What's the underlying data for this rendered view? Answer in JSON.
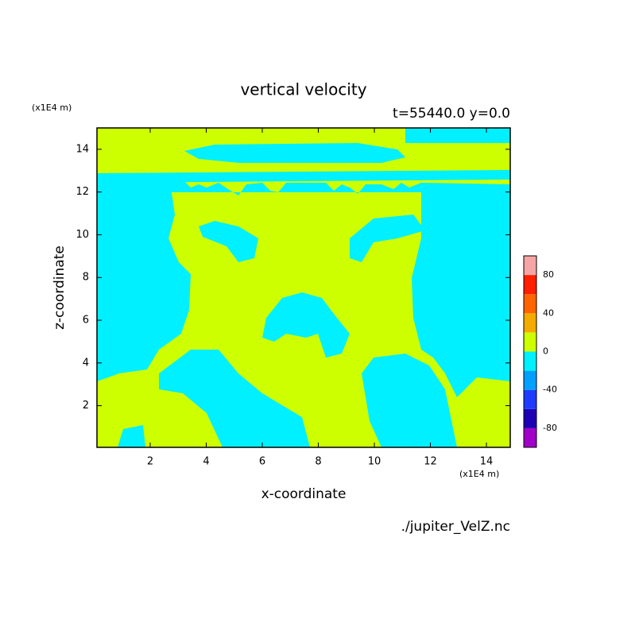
{
  "chart_data": {
    "type": "contour",
    "title": "vertical velocity",
    "subtitle": "t=55440.0 y=0.0",
    "x_label": "x-coordinate",
    "y_label": "z-coordinate",
    "x_unit": "(x1E4 m)",
    "y_unit": "(x1E4 m)",
    "source": "./jupiter_VelZ.nc",
    "xlim": [
      0.1,
      14.85
    ],
    "xticks": [
      2,
      4,
      6,
      8,
      10,
      12,
      14
    ],
    "ylim": [
      0.05,
      15
    ],
    "yticks": [
      2,
      4,
      6,
      8,
      10,
      12,
      14
    ],
    "colorbar": {
      "levels": [
        -100,
        -80,
        -60,
        -40,
        -20,
        0,
        20,
        40,
        60,
        80,
        100
      ],
      "colors": [
        "#a000c8",
        "#1e00b4",
        "#1e3cff",
        "#00a0ff",
        "#00f0ff",
        "#cdff00",
        "#f5aa00",
        "#ff6400",
        "#ff1e00",
        "#f5a5a5"
      ],
      "ticks": [
        -80,
        -40,
        0,
        40,
        80
      ]
    }
  }
}
